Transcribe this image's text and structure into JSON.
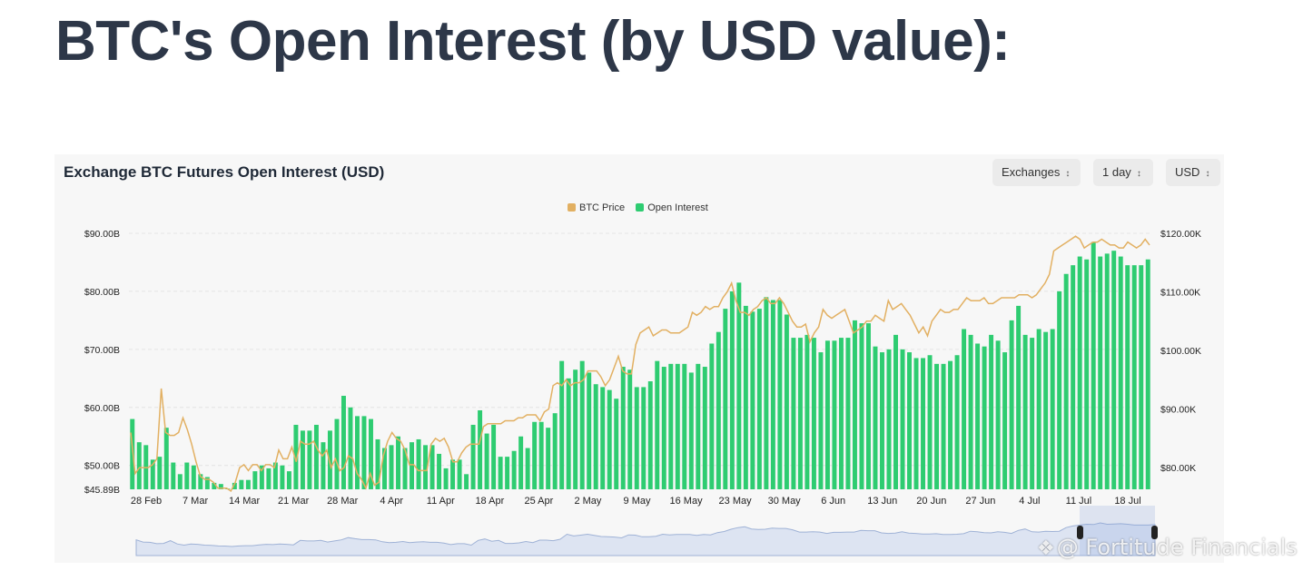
{
  "page": {
    "title": "BTC's Open Interest (by USD value):"
  },
  "card": {
    "title": "Exchange BTC Futures Open Interest (USD)",
    "controls": [
      {
        "label": "Exchanges"
      },
      {
        "label": "1 day"
      },
      {
        "label": "USD"
      }
    ]
  },
  "watermark": {
    "text": "@ Fortitude Financials"
  },
  "colors": {
    "open_interest": "#2ecc71",
    "btc_price": "#e2b062",
    "navigator_fill": "#dde4f2",
    "navigator_line": "#9fb2d6"
  },
  "chart_data": {
    "type": "bar",
    "legend_position": "top-center",
    "legend": [
      "BTC Price",
      "Open Interest"
    ],
    "x_tick_labels": [
      "28 Feb",
      "7 Mar",
      "14 Mar",
      "21 Mar",
      "28 Mar",
      "4 Apr",
      "11 Apr",
      "18 Apr",
      "25 Apr",
      "2 May",
      "9 May",
      "16 May",
      "23 May",
      "30 May",
      "6 Jun",
      "13 Jun",
      "20 Jun",
      "27 Jun",
      "4 Jul",
      "11 Jul",
      "18 Jul"
    ],
    "y_left": {
      "ticks": [
        "$45.89B",
        "$50.00B",
        "$60.00B",
        "$70.00B",
        "$80.00B",
        "$90.00B"
      ],
      "range": [
        45.89,
        90
      ]
    },
    "y_right": {
      "ticks": [
        "$80.00K",
        "$90.00K",
        "$100.00K",
        "$110.00K",
        "$120.00K"
      ],
      "range": [
        76.3,
        120
      ]
    },
    "grid": true,
    "series": [
      {
        "name": "Open Interest",
        "axis": "left",
        "unit": "B USD",
        "values": [
          58,
          54,
          53.5,
          51,
          51.5,
          56.5,
          50.5,
          48.5,
          50.5,
          50,
          48.5,
          48,
          47,
          46.8,
          46,
          47,
          47.5,
          47.5,
          49,
          50,
          49.5,
          50.5,
          50,
          49,
          57,
          56,
          56,
          57,
          54,
          56,
          58,
          62,
          60,
          58.5,
          58.5,
          58,
          54.5,
          53,
          53.5,
          55,
          53,
          54,
          54.5,
          53.5,
          53.5,
          52,
          49.5,
          51,
          51,
          48.5,
          57,
          59.5,
          55.5,
          57,
          51.5,
          51.5,
          52.5,
          55,
          53,
          57.5,
          57.5,
          56.5,
          59,
          68,
          65,
          66.5,
          68,
          66,
          64,
          63.5,
          63,
          61.5,
          67,
          66.5,
          63.5,
          63.5,
          64.5,
          68,
          67,
          67.5,
          67.5,
          67.5,
          66,
          67.5,
          67,
          71,
          73,
          77,
          80,
          81.5,
          77.5,
          76.5,
          77,
          79,
          78.5,
          78.5,
          76,
          72,
          72,
          72.5,
          72,
          69.5,
          71.5,
          71.5,
          72,
          72,
          75,
          74.5,
          74.5,
          70.5,
          69.5,
          70,
          72.5,
          70,
          69.5,
          68.5,
          68.5,
          69,
          67.5,
          67.5,
          68,
          69,
          73.5,
          72.5,
          71,
          70.5,
          72.5,
          71.5,
          69.5,
          75,
          77.5,
          72.5,
          72,
          73.5,
          73,
          73.5,
          80,
          83,
          84.5,
          86,
          85.5,
          88.5,
          86,
          86.5,
          87,
          86,
          84.5,
          84.5,
          84.5,
          85.5
        ]
      },
      {
        "name": "BTC Price",
        "axis": "right",
        "unit": "K USD",
        "values": [
          86,
          79,
          80,
          80,
          80,
          80.5,
          81.5,
          93.5,
          86,
          85.5,
          85.5,
          86,
          88.5,
          86.5,
          84,
          81,
          78.5,
          78,
          78,
          77.5,
          76.5,
          76.5,
          76.5,
          76,
          77.5,
          80,
          80.5,
          79.5,
          80.5,
          80.5,
          79.5,
          80.5,
          80.5,
          80,
          83,
          81.5,
          81.5,
          83.5,
          81,
          84.5,
          84,
          84,
          84.5,
          83,
          82,
          83,
          80,
          81.5,
          79.5,
          80,
          82,
          81.5,
          79,
          78,
          76.5,
          79,
          77,
          77.5,
          82,
          84.5,
          86,
          85,
          84.5,
          83,
          80.5,
          80.5,
          79.5,
          79.5,
          79.5,
          84,
          85,
          84.5,
          85,
          83.5,
          81,
          81,
          82.5,
          83.5,
          84,
          84,
          84,
          87,
          87.5,
          87.5,
          87.5,
          87.5,
          88,
          88,
          88,
          88.5,
          88.5,
          89,
          89,
          89,
          88,
          89.5,
          90,
          94,
          94.5,
          94,
          95,
          94,
          94.5,
          94.5,
          95,
          96.5,
          96.5,
          96.5,
          95.5,
          94,
          95,
          97,
          99,
          96.5,
          96,
          96,
          101,
          103,
          103.5,
          104,
          102.5,
          103,
          103.5,
          103.5,
          103,
          103,
          103,
          103.5,
          104,
          106.5,
          106,
          106.5,
          107.5,
          107,
          107.5,
          107.5,
          109,
          110,
          111.5,
          108.5,
          106.5,
          106.5,
          106,
          107,
          107.5,
          108.5,
          109,
          108,
          108,
          109,
          108,
          106.5,
          105,
          104,
          104,
          104.5,
          101.5,
          103,
          104,
          107,
          106,
          105.5,
          106,
          106.5,
          107,
          105,
          103,
          103.5,
          104,
          105,
          105,
          106,
          105.5,
          105,
          108.5,
          107,
          107.5,
          108,
          107,
          106,
          104.5,
          103,
          104,
          102.5,
          105,
          106,
          107,
          106.5,
          106.5,
          107,
          107,
          108,
          109,
          108.5,
          108.5,
          108.5,
          109,
          108,
          108,
          108.5,
          109,
          109,
          109,
          109,
          109.5,
          109.5,
          109.5,
          109,
          109.5,
          110.5,
          111.5,
          113,
          117,
          117.5,
          118,
          118.5,
          119,
          119.5,
          119,
          117.5,
          118,
          118.5,
          118.5,
          119,
          118.5,
          118,
          118,
          117.5,
          117.5,
          118.5,
          118,
          117.5,
          118,
          119,
          118
        ]
      }
    ]
  }
}
